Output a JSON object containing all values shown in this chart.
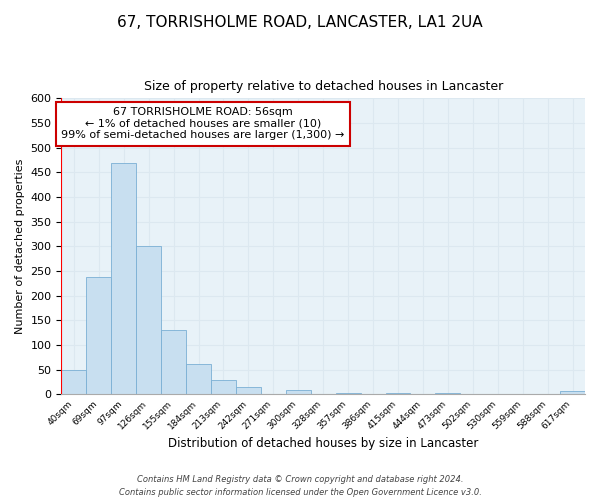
{
  "title": "67, TORRISHOLME ROAD, LANCASTER, LA1 2UA",
  "subtitle": "Size of property relative to detached houses in Lancaster",
  "xlabel": "Distribution of detached houses by size in Lancaster",
  "ylabel": "Number of detached properties",
  "bar_color": "#c8dff0",
  "bar_edge_color": "#7aafd4",
  "bin_labels": [
    "40sqm",
    "69sqm",
    "97sqm",
    "126sqm",
    "155sqm",
    "184sqm",
    "213sqm",
    "242sqm",
    "271sqm",
    "300sqm",
    "328sqm",
    "357sqm",
    "386sqm",
    "415sqm",
    "444sqm",
    "473sqm",
    "502sqm",
    "530sqm",
    "559sqm",
    "588sqm",
    "617sqm"
  ],
  "bar_heights": [
    50,
    238,
    470,
    300,
    130,
    62,
    30,
    15,
    0,
    10,
    0,
    3,
    0,
    3,
    0,
    3,
    0,
    0,
    0,
    0,
    8
  ],
  "ylim": [
    0,
    600
  ],
  "yticks": [
    0,
    50,
    100,
    150,
    200,
    250,
    300,
    350,
    400,
    450,
    500,
    550,
    600
  ],
  "annotation_line1": "67 TORRISHOLME ROAD: 56sqm",
  "annotation_line2": "← 1% of detached houses are smaller (10)",
  "annotation_line3": "99% of semi-detached houses are larger (1,300) →",
  "annotation_box_color": "#ffffff",
  "annotation_box_edge_color": "#cc0000",
  "red_line_x": 0,
  "footer_line1": "Contains HM Land Registry data © Crown copyright and database right 2024.",
  "footer_line2": "Contains public sector information licensed under the Open Government Licence v3.0.",
  "grid_color": "#dce8f0",
  "bg_color": "#e8f2f8"
}
